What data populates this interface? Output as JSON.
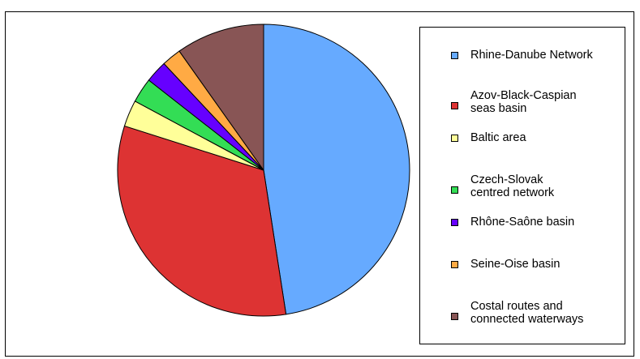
{
  "chart_data": {
    "type": "pie",
    "title": "",
    "legend_position": "right",
    "start_angle_deg": 0,
    "direction": "clockwise",
    "categories": [
      "Rhine-Danube Network",
      "Azov-Black-Caspian seas basin",
      "Baltic area",
      "Czech-Slovak centred network",
      "Rhône-Saône basin",
      "Seine-Oise basin",
      "Costal routes and connected waterways"
    ],
    "legend_labels": [
      [
        "Rhine-Danube Network"
      ],
      [
        "Azov-Black-Caspian",
        "seas basin"
      ],
      [
        "Baltic area"
      ],
      [
        "Czech-Slovak",
        "centred network"
      ],
      [
        "Rhône-Saône basin"
      ],
      [
        "Seine-Oise basin"
      ],
      [
        "Costal routes and",
        "connected waterways"
      ]
    ],
    "values": [
      48.5,
      33,
      3,
      2.8,
      2.5,
      2.2,
      10
    ],
    "colors": [
      "#66aaff",
      "#dd3333",
      "#ffff99",
      "#33dd55",
      "#6600ff",
      "#ffaa44",
      "#885555"
    ]
  }
}
